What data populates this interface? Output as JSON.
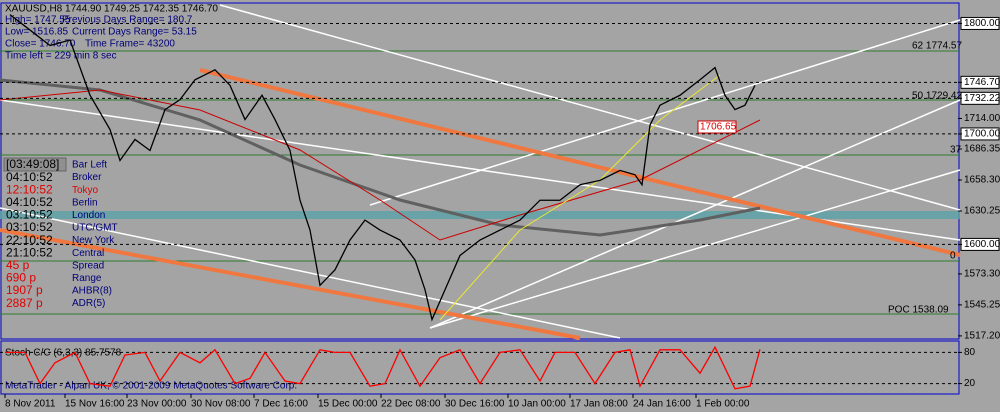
{
  "info": {
    "symbol_line": "XAUUSD,H8  1744.90 1749.25 1742.35 1746.70",
    "high": "High= 1747.55",
    "prev_range": "Previous Days Range= 180.7",
    "low": "Low= 1516.85",
    "cur_range": "Current Days Range= 53.15",
    "close": "Close= 1746.70",
    "time_frame": "Time Frame= 43200",
    "time_left": "Time left = 229 min 8 sec"
  },
  "clock": [
    {
      "time": "[03:49:08]",
      "label": "Bar Left"
    },
    {
      "time": "04:10:52",
      "label": "Broker"
    },
    {
      "time": "12:10:52",
      "label": "Tokyo"
    },
    {
      "time": "04:10:52",
      "label": "Berlin"
    },
    {
      "time": "03:10:52",
      "label": "London"
    },
    {
      "time": "03:10:52",
      "label": "UTC/GMT"
    },
    {
      "time": "22:10:52",
      "label": "New York"
    },
    {
      "time": "21:10:52",
      "label": "Central"
    }
  ],
  "stats": [
    {
      "value": "45 p",
      "label": "Spread"
    },
    {
      "value": "690 p",
      "label": "Range"
    },
    {
      "value": "1907 p",
      "label": "AHBR(8)"
    },
    {
      "value": "2887 p",
      "label": "ADR(5)"
    }
  ],
  "footer": "MetaTrader - Alpari UK, © 2001-2009 MetaQuotes Software Corp.",
  "chart_data": [
    {
      "type": "line",
      "annotations": [
        "62  1774.57",
        "50  1729.42",
        "37",
        "0",
        "POC  1538.09",
        "1706.65"
      ],
      "x": [
        10,
        30,
        50,
        70,
        90,
        110,
        120,
        135,
        150,
        165,
        180,
        195,
        215,
        230,
        245,
        262,
        275,
        290,
        300,
        310,
        320,
        335,
        350,
        365,
        380,
        400,
        415,
        425,
        432,
        445,
        460,
        480,
        500,
        520,
        540,
        560,
        580,
        600,
        620,
        635,
        642,
        650,
        660,
        680,
        700,
        715,
        725,
        735,
        745,
        755
      ],
      "series": [
        {
          "color": "#000000",
          "values": [
            1808,
            1794,
            1780,
            1785,
            1735,
            1704,
            1676,
            1695,
            1685,
            1722,
            1731,
            1749,
            1758,
            1744,
            1713,
            1735,
            1713,
            1685,
            1640,
            1613,
            1563,
            1577,
            1604,
            1622,
            1613,
            1604,
            1586,
            1559,
            1532,
            1559,
            1590,
            1604,
            1613,
            1622,
            1640,
            1640,
            1654,
            1658,
            1667,
            1663,
            1654,
            1708,
            1726,
            1735,
            1749,
            1760,
            1735,
            1722,
            1726,
            1744
          ]
        }
      ],
      "xlim": [
        0,
        960
      ],
      "xticks": [
        {
          "value": 5,
          "label": "8 Nov 2011"
        },
        {
          "value": 65,
          "label": "15 Nov 16:00"
        },
        {
          "value": 127,
          "label": "23 Nov 00:00"
        },
        {
          "value": 191,
          "label": "30 Nov 08:00"
        },
        {
          "value": 254,
          "label": "7 Dec 16:00"
        },
        {
          "value": 318,
          "label": "15 Dec 00:00"
        },
        {
          "value": 381,
          "label": "22 Dec 08:00"
        },
        {
          "value": 445,
          "label": "30 Dec 16:00"
        },
        {
          "value": 508,
          "label": "10 Jan 00:00"
        },
        {
          "value": 570,
          "label": "17 Jan 08:00"
        },
        {
          "value": 633,
          "label": "24 Jan 16:00"
        },
        {
          "value": 696,
          "label": "1 Feb 00:00"
        }
      ],
      "ylim": [
        1515.3,
        1817.6
      ],
      "yticks": [
        {
          "value": 1517.2,
          "label": "1517.20"
        },
        1545.25,
        {
          "value": 1573.3,
          "label": "1573.30"
        },
        {
          "value": 1600,
          "label": "1600.00"
        },
        1630.25,
        {
          "value": 1658.3,
          "label": "1658.30"
        },
        1686.35,
        {
          "value": 1700,
          "label": "1700.00"
        },
        {
          "value": 1714,
          "label": "1714.00"
        },
        1732.22,
        {
          "value": 1746.7,
          "label": "1746.70"
        },
        {
          "value": 1800,
          "label": "1800.00"
        }
      ]
    },
    {
      "type": "line",
      "title": "Stoch C/C (6,3,3) 85.7578",
      "x": [
        5,
        25,
        40,
        55,
        75,
        90,
        110,
        125,
        145,
        160,
        180,
        200,
        215,
        235,
        250,
        265,
        285,
        300,
        320,
        335,
        350,
        370,
        385,
        400,
        420,
        440,
        460,
        480,
        500,
        520,
        540,
        555,
        575,
        595,
        615,
        630,
        640,
        660,
        680,
        700,
        715,
        735,
        750,
        760
      ],
      "series": [
        {
          "color": "#ff0000",
          "values": [
            80,
            80,
            20,
            60,
            80,
            20,
            15,
            75,
            80,
            25,
            80,
            60,
            85,
            20,
            30,
            80,
            25,
            20,
            85,
            80,
            80,
            15,
            20,
            85,
            15,
            70,
            85,
            20,
            80,
            85,
            25,
            80,
            80,
            20,
            80,
            85,
            15,
            85,
            85,
            40,
            90,
            10,
            15,
            86
          ]
        }
      ],
      "xlim": [
        0,
        960
      ],
      "ylim": [
        0,
        100
      ],
      "yticks": [
        20,
        80
      ]
    }
  ]
}
